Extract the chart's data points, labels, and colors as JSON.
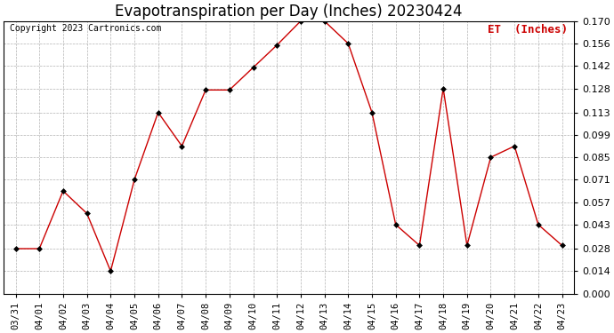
{
  "title": "Evapotranspiration per Day (Inches) 20230424",
  "copyright_text": "Copyright 2023 Cartronics.com",
  "legend_text": "ET  (Inches)",
  "dates": [
    "03/31",
    "04/01",
    "04/02",
    "04/03",
    "04/04",
    "04/05",
    "04/06",
    "04/07",
    "04/08",
    "04/09",
    "04/10",
    "04/11",
    "04/12",
    "04/13",
    "04/14",
    "04/15",
    "04/16",
    "04/17",
    "04/18",
    "04/19",
    "04/20",
    "04/21",
    "04/22",
    "04/23"
  ],
  "values": [
    0.028,
    0.028,
    0.064,
    0.05,
    0.014,
    0.071,
    0.113,
    0.092,
    0.127,
    0.127,
    0.141,
    0.155,
    0.17,
    0.17,
    0.156,
    0.113,
    0.043,
    0.03,
    0.128,
    0.03,
    0.085,
    0.092,
    0.043,
    0.03
  ],
  "ylim": [
    0.0,
    0.17
  ],
  "yticks": [
    0.0,
    0.014,
    0.028,
    0.043,
    0.057,
    0.071,
    0.085,
    0.099,
    0.113,
    0.128,
    0.142,
    0.156,
    0.17
  ],
  "line_color": "#cc0000",
  "marker_color": "#000000",
  "title_fontsize": 12,
  "copyright_fontsize": 7,
  "legend_fontsize": 9,
  "tick_fontsize": 7.5,
  "ytick_fontsize": 8,
  "background_color": "#ffffff",
  "grid_color": "#aaaaaa"
}
